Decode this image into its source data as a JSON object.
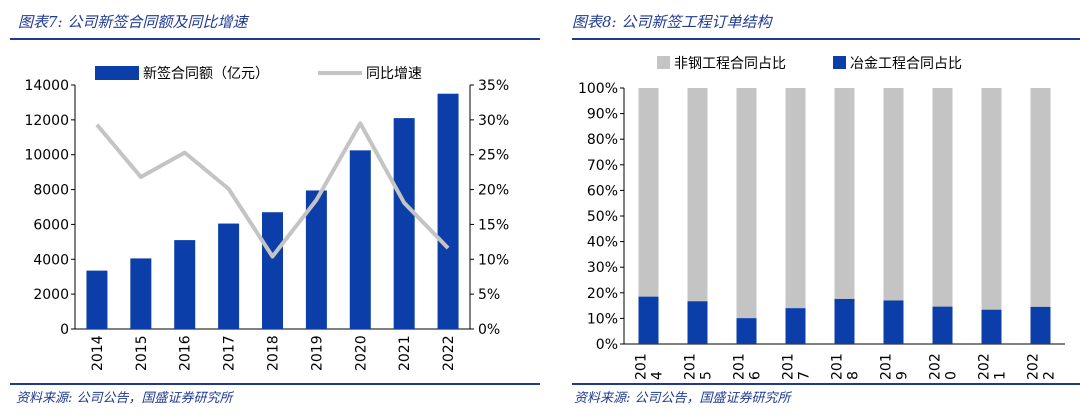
{
  "chart_data": [
    {
      "type": "bar",
      "title": "图表7:  公司新签合同额及同比增速",
      "source": "资料来源:  公司公告，国盛证券研究所",
      "categories": [
        "2014",
        "2015",
        "2016",
        "2017",
        "2018",
        "2019",
        "2020",
        "2021",
        "2022"
      ],
      "series": [
        {
          "name": "新签合同额（亿元）",
          "type": "bar",
          "axis": "left",
          "values": [
            3350,
            4050,
            5100,
            6050,
            6700,
            7950,
            10250,
            12100,
            13500
          ]
        },
        {
          "name": "同比增速",
          "type": "line",
          "axis": "right",
          "values": [
            29.3,
            21.8,
            25.3,
            20.1,
            10.4,
            18.5,
            29.5,
            18.1,
            11.6
          ]
        }
      ],
      "ylim_left": [
        0,
        14000
      ],
      "yticks_left": [
        "0",
        "2000",
        "4000",
        "6000",
        "8000",
        "10000",
        "12000",
        "14000"
      ],
      "ylim_right": [
        0,
        35
      ],
      "yticks_right": [
        "0%",
        "5%",
        "10%",
        "15%",
        "20%",
        "25%",
        "30%",
        "35%"
      ],
      "colors": {
        "bar": "#0b3ea8",
        "line": "#c4c4c4"
      }
    },
    {
      "type": "bar",
      "stacked": true,
      "title": "图表8:  公司新签工程订单结构",
      "source": "资料来源:  公司公告，国盛证券研究所",
      "categories": [
        [
          "201",
          "4"
        ],
        [
          "201",
          "5"
        ],
        [
          "201",
          "6"
        ],
        [
          "201",
          "7"
        ],
        [
          "201",
          "8"
        ],
        [
          "201",
          "9"
        ],
        [
          "202",
          "0"
        ],
        [
          "202",
          "1"
        ],
        [
          "202",
          "2"
        ]
      ],
      "series": [
        {
          "name": "冶金工程合同占比",
          "values": [
            18.5,
            16.7,
            10.1,
            14.0,
            17.6,
            17.0,
            14.6,
            13.4,
            14.5
          ]
        },
        {
          "name": "非钢工程合同占比",
          "values": [
            81.5,
            83.3,
            89.9,
            86.0,
            82.4,
            83.0,
            85.4,
            86.6,
            85.5
          ]
        }
      ],
      "legend_order": [
        "非钢工程合同占比",
        "冶金工程合同占比"
      ],
      "ylim": [
        0,
        100
      ],
      "yticks": [
        "0%",
        "10%",
        "20%",
        "30%",
        "40%",
        "50%",
        "60%",
        "70%",
        "80%",
        "90%",
        "100%"
      ],
      "colors": {
        "metallurgy": "#0b3ea8",
        "nonsteel": "#c4c4c4"
      }
    }
  ]
}
